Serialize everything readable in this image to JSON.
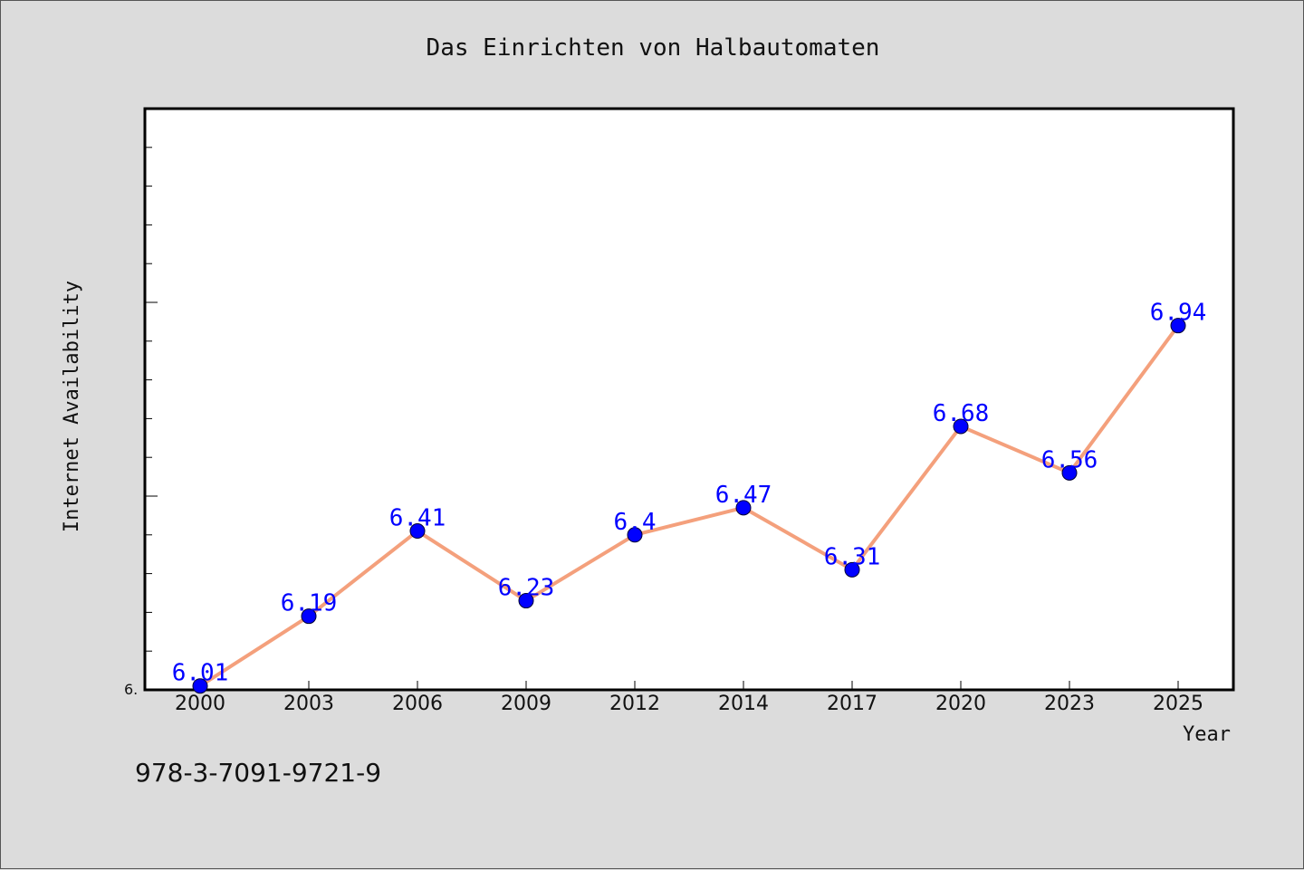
{
  "chart_data": {
    "type": "line",
    "title": "Das Einrichten von Halbautomaten",
    "xlabel": "Year",
    "ylabel": "Internet Availability",
    "categories": [
      "2000",
      "2003",
      "2006",
      "2009",
      "2012",
      "2014",
      "2017",
      "2020",
      "2023",
      "2025"
    ],
    "series": [
      {
        "values": [
          6.01,
          6.19,
          6.41,
          6.23,
          6.4,
          6.47,
          6.31,
          6.68,
          6.56,
          6.94
        ],
        "labels": [
          "6.01",
          "6.19",
          "6.41",
          "6.23",
          "6.4",
          "6.47",
          "6.31",
          "6.68",
          "6.56",
          "6.94"
        ],
        "line_color": "#f4a07c",
        "marker_color": "#0000ff"
      }
    ],
    "ylim": [
      6.0,
      7.5
    ],
    "y_tick_label": "6.",
    "grid": false,
    "legend": "none"
  },
  "footer": {
    "isbn": "978-3-7091-9721-9"
  },
  "colors": {
    "background": "#dcdcdc",
    "plot_background": "#ffffff",
    "data_label": "#0000ff"
  }
}
